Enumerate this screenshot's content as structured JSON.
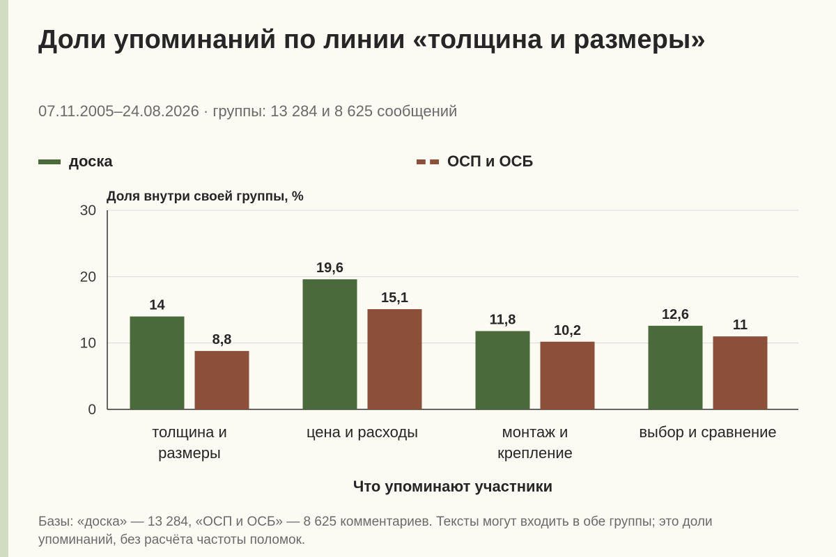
{
  "header": {
    "title": "Доли упоминаний по линии «толщина и размеры»",
    "subtitle": "07.11.2005–24.08.2026 · группы: 13 284 и 8 625 сообщений"
  },
  "legend": [
    {
      "label": "доска",
      "color": "#4a6a3b",
      "style": "solid"
    },
    {
      "label": "ОСП и ОСБ",
      "color": "#8c4f3a",
      "style": "dashed"
    }
  ],
  "footnote": "Базы: «доска» — 13 284, «ОСП и ОСБ» — 8 625 комментариев. Тексты могут входить в обе группы; это доли упоминаний, без расчёта частоты поломок.",
  "chart_data": {
    "type": "bar",
    "title": "Доли упоминаний по линии «толщина и размеры»",
    "ylabel": "Доля внутри своей группы, %",
    "xlabel": "Что упоминают участники",
    "ylim": [
      0,
      30
    ],
    "yticks": [
      0,
      10,
      20,
      30
    ],
    "grid": true,
    "legend_position": "top",
    "categories": [
      [
        "толщина и",
        "размеры"
      ],
      [
        "цена и расходы"
      ],
      [
        "монтаж и",
        "крепление"
      ],
      [
        "выбор и сравнение"
      ]
    ],
    "series": [
      {
        "name": "доска",
        "color": "#4a6a3b",
        "values": [
          14,
          19.6,
          11.8,
          12.6
        ],
        "labels": [
          "14",
          "19,6",
          "11,8",
          "12,6"
        ]
      },
      {
        "name": "ОСП и ОСБ",
        "color": "#8c4f3a",
        "values": [
          8.8,
          15.1,
          10.2,
          11
        ],
        "labels": [
          "8,8",
          "15,1",
          "10,2",
          "11"
        ]
      }
    ]
  }
}
